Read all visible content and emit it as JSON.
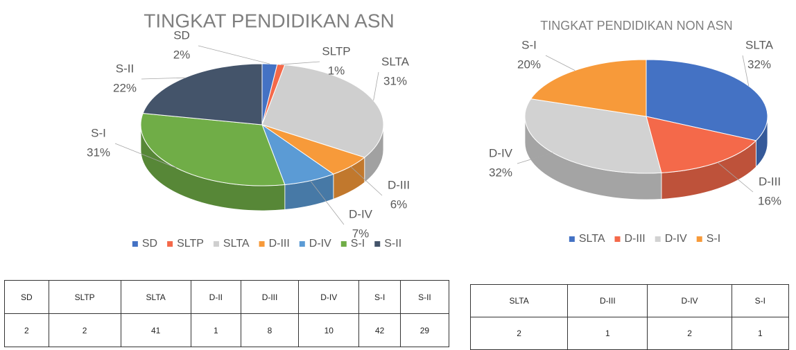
{
  "chart_data": [
    {
      "type": "pie",
      "title": "TINGKAT PENDIDIKAN ASN",
      "categories": [
        "SD",
        "SLTP",
        "SLTA",
        "D-III",
        "D-IV",
        "S-I",
        "S-II"
      ],
      "values": [
        2,
        1,
        31,
        6,
        7,
        31,
        22
      ],
      "value_labels": [
        "2%",
        "1%",
        "31%",
        "6%",
        "7%",
        "31%",
        "22%"
      ],
      "colors": [
        "#4472c4",
        "#f4694a",
        "#cfcfcf",
        "#f79a3a",
        "#5b9bd5",
        "#70ad47",
        "#44546a"
      ],
      "legend": "bottom"
    },
    {
      "type": "pie",
      "title": "TINGKAT PENDIDIKAN NON ASN",
      "categories": [
        "SLTA",
        "D-III",
        "D-IV",
        "S-I"
      ],
      "values": [
        32,
        16,
        32,
        20
      ],
      "value_labels": [
        "32%",
        "16%",
        "32%",
        "20%"
      ],
      "colors": [
        "#4472c4",
        "#f4694a",
        "#d2d2d2",
        "#f79a3a"
      ],
      "legend": "bottom"
    }
  ],
  "tables": [
    {
      "header": [
        "SD",
        "SLTP",
        "SLTA",
        "D-II",
        "D-III",
        "D-IV",
        "S-I",
        "S-II"
      ],
      "rows": [
        [
          2,
          2,
          41,
          1,
          8,
          10,
          42,
          29
        ]
      ]
    },
    {
      "header": [
        "SLTA",
        "D-III",
        "D-IV",
        "S-I"
      ],
      "rows": [
        [
          2,
          1,
          2,
          1
        ]
      ]
    }
  ]
}
